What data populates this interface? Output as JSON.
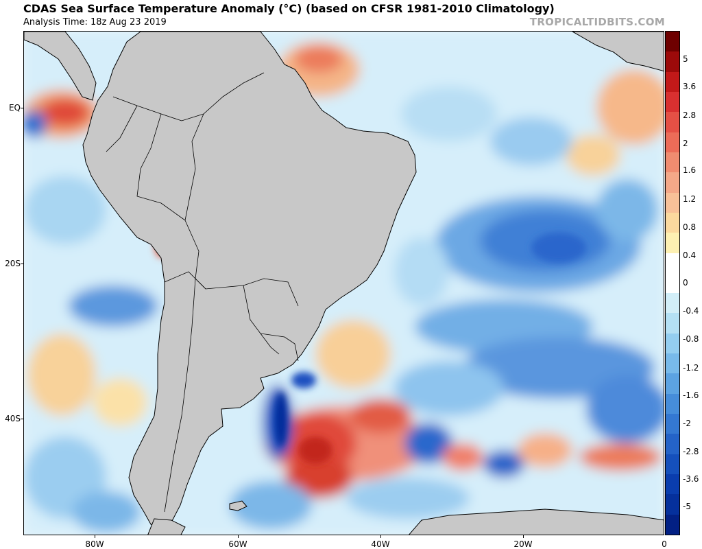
{
  "header": {
    "title": "CDAS Sea Surface Temperature Anomaly (°C) (based on CFSR 1981-2010 Climatology)",
    "analysis_time": "Analysis Time: 18z Aug 23 2019",
    "credit": "TROPICALTIDBITS.COM"
  },
  "map": {
    "region": "South America / South Atlantic / Southeast Pacific",
    "lat_labels": [
      "EQ",
      "20S",
      "40S"
    ],
    "lon_labels": [
      "80W",
      "60W",
      "40W",
      "20W",
      "0"
    ],
    "land_color": "#c8c8c8",
    "ocean_base_color": "#e9f5fb"
  },
  "colorbar": {
    "labels": [
      "5",
      "3.6",
      "2.8",
      "2",
      "1.6",
      "1.2",
      "0.8",
      "0.4",
      "0",
      "-0.4",
      "-0.8",
      "-1.2",
      "-1.6",
      "-2",
      "-2.8",
      "-3.6",
      "-5"
    ],
    "colors": [
      "#6e0000",
      "#9c0a0a",
      "#c21919",
      "#d93030",
      "#e55045",
      "#ec6c58",
      "#f08c70",
      "#f4a888",
      "#f8c198",
      "#fbd99e",
      "#fdf0b2",
      "#ffffff",
      "#ffffff",
      "#d2eef8",
      "#b4e0f4",
      "#94cef0",
      "#78baea",
      "#5ca3e2",
      "#468dda",
      "#3478d2",
      "#2463c8",
      "#1550bc",
      "#0a3dae",
      "#05309c",
      "#022084"
    ]
  }
}
